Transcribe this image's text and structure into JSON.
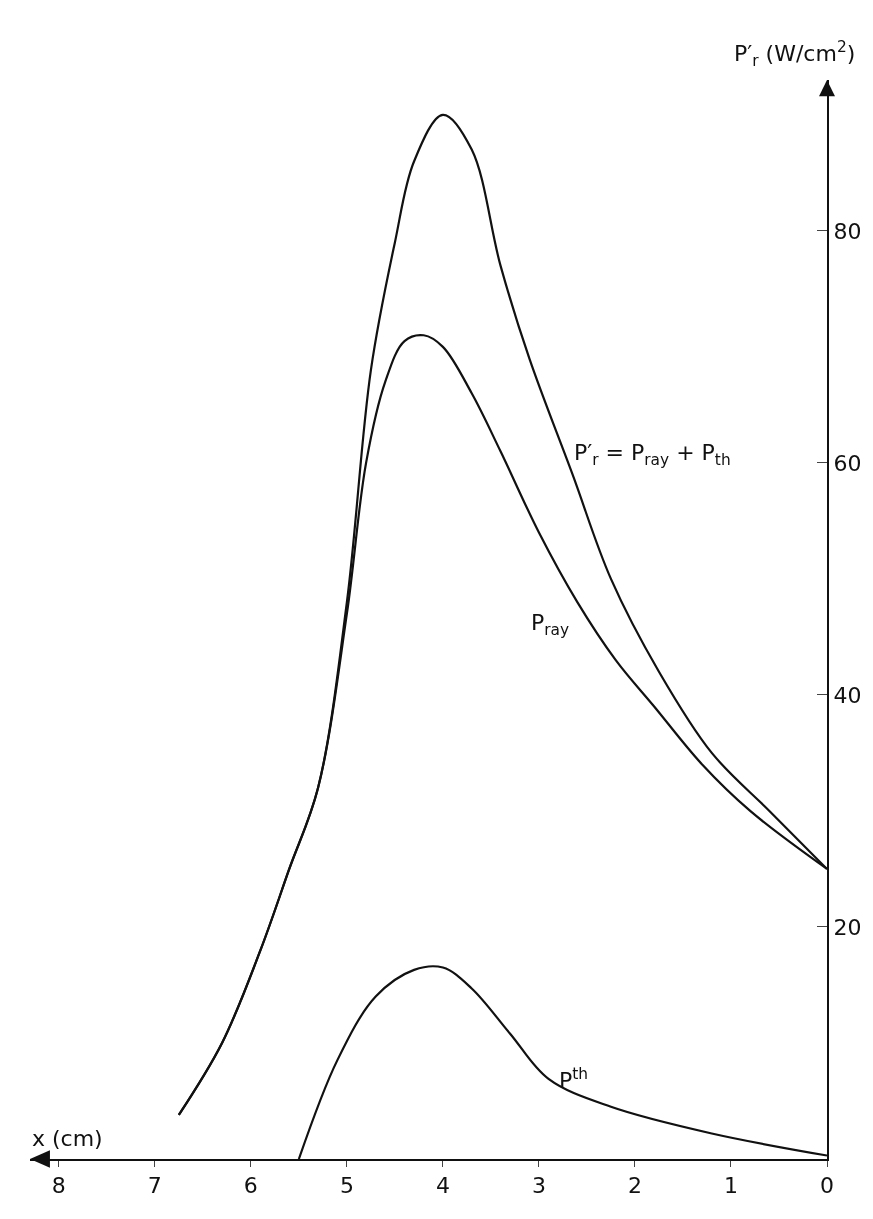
{
  "chart_data": {
    "type": "line",
    "xlabel": "x (cm)",
    "ylabel": "P′$_{r}$ (W/cm$^{2}$)",
    "xlim": [
      8.3,
      0
    ],
    "xticks": [
      8,
      7,
      6,
      5,
      4,
      3,
      2,
      1,
      0
    ],
    "ylim": [
      0,
      93
    ],
    "yticks": [
      20,
      40,
      60,
      80
    ],
    "grid": false,
    "legend": false,
    "marker": "none",
    "line_style": "solid",
    "series": [
      {
        "name": "P′$_{r}$ = P$_{ray}$ + P$_{th}$",
        "color": "#111111",
        "x": [
          6.75,
          6.3,
          5.9,
          5.6,
          5.3,
          5.0,
          4.75,
          4.5,
          4.3,
          4.0,
          3.7,
          3.4,
          3.1,
          2.65,
          2.25,
          1.75,
          1.2,
          0.6,
          0
        ],
        "values": [
          3.8,
          10,
          18,
          25,
          32,
          48,
          68,
          79,
          86,
          90,
          87,
          77,
          69,
          59,
          50,
          42,
          35,
          30,
          25
        ]
      },
      {
        "name": "P$_{ray}$",
        "color": "#111111",
        "x": [
          6.75,
          6.3,
          5.9,
          5.6,
          5.3,
          5.0,
          4.8,
          4.6,
          4.4,
          4.2,
          4.0,
          3.7,
          3.4,
          3.0,
          2.6,
          2.2,
          1.8,
          1.3,
          0.8,
          0
        ],
        "values": [
          3.8,
          10,
          18,
          25,
          32,
          47,
          60,
          67,
          70.5,
          71,
          70,
          66,
          61,
          54,
          48,
          43,
          39,
          34,
          30,
          25
        ]
      },
      {
        "name": "P$^{th}$",
        "color": "#111111",
        "x": [
          5.5,
          5.1,
          4.7,
          4.3,
          4.0,
          3.7,
          3.3,
          2.9,
          2.25,
          1.2,
          0
        ],
        "values": [
          0,
          8.5,
          14,
          16.3,
          16.5,
          14.7,
          10.8,
          6.9,
          4.5,
          2.2,
          0.3
        ]
      }
    ]
  }
}
